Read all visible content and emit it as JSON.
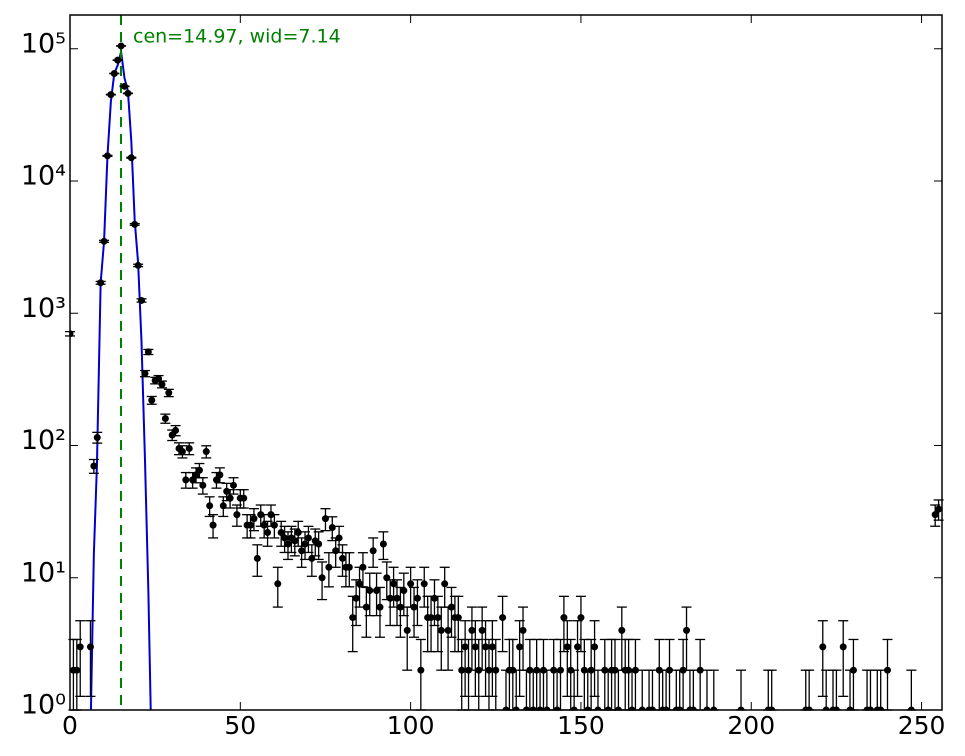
{
  "chart_data": {
    "type": "errorbar",
    "x": [
      0,
      1,
      2,
      3,
      6,
      7,
      8,
      9,
      10,
      11,
      12,
      13,
      14,
      15,
      16,
      17,
      18,
      19,
      20,
      21,
      22,
      23,
      24,
      25,
      26,
      27,
      28,
      29,
      30,
      31,
      32,
      33,
      34,
      35,
      36,
      37,
      38,
      39,
      40,
      41,
      42,
      43,
      44,
      45,
      46,
      47,
      48,
      49,
      50,
      51,
      52,
      53,
      54,
      55,
      56,
      57,
      58,
      59,
      60,
      61,
      62,
      63,
      64,
      65,
      66,
      67,
      68,
      69,
      70,
      71,
      72,
      73,
      74,
      75,
      76,
      77,
      78,
      79,
      80,
      81,
      82,
      83,
      84,
      85,
      86,
      87,
      88,
      89,
      90,
      91,
      92,
      93,
      94,
      95,
      96,
      97,
      98,
      99,
      100,
      101,
      102,
      103,
      104,
      105,
      106,
      107,
      108,
      109,
      110,
      111,
      112,
      113,
      114,
      115,
      116,
      117,
      118,
      119,
      120,
      121,
      122,
      123,
      124,
      125,
      127,
      128,
      129,
      130,
      131,
      132,
      133,
      134,
      135,
      136,
      137,
      138,
      139,
      140,
      142,
      143,
      144,
      145,
      146,
      147,
      148,
      149,
      150,
      151,
      152,
      153,
      154,
      155,
      157,
      158,
      159,
      160,
      161,
      162,
      163,
      164,
      165,
      166,
      168,
      170,
      171,
      173,
      174,
      175,
      176,
      178,
      179,
      180,
      181,
      182,
      183,
      185,
      187,
      189,
      197,
      205,
      206,
      216,
      217,
      221,
      222,
      224,
      225,
      227,
      229,
      230,
      234,
      235,
      237,
      238,
      240,
      247,
      254,
      255
    ],
    "values": [
      700,
      2,
      2,
      3,
      3,
      70,
      115,
      1700,
      3500,
      15500,
      45000,
      65000,
      82000,
      105000,
      52000,
      46000,
      15000,
      4700,
      2300,
      1250,
      350,
      510,
      220,
      310,
      320,
      290,
      160,
      250,
      120,
      130,
      95,
      90,
      55,
      95,
      55,
      60,
      65,
      50,
      90,
      35,
      25,
      55,
      60,
      35,
      45,
      40,
      50,
      30,
      40,
      40,
      25,
      25,
      28,
      14,
      30,
      25,
      22,
      30,
      25,
      9,
      22,
      20,
      18,
      20,
      19,
      22,
      16,
      18,
      20,
      14,
      19,
      18,
      10,
      28,
      12,
      24,
      16,
      20,
      14,
      12,
      12,
      5,
      7,
      9,
      12,
      6,
      8,
      16,
      8,
      6,
      18,
      10,
      7,
      9,
      7,
      6,
      8,
      4,
      9,
      6,
      7,
      2,
      9,
      5,
      5,
      7,
      5,
      4,
      9,
      4,
      6,
      5,
      5,
      2,
      3,
      2,
      4,
      3,
      2,
      4,
      3,
      2,
      3,
      2,
      5,
      1,
      2,
      2,
      1,
      3,
      4,
      1,
      2,
      1,
      2,
      1,
      2,
      1,
      2,
      1,
      2,
      5,
      3,
      2,
      1,
      3,
      5,
      2,
      1,
      2,
      3,
      1,
      2,
      1,
      2,
      2,
      1,
      4,
      2,
      2,
      1,
      2,
      1,
      1,
      1,
      2,
      1,
      1,
      2,
      1,
      1,
      2,
      4,
      1,
      1,
      2,
      1,
      1,
      1,
      1,
      1,
      1,
      1,
      3,
      1,
      1,
      1,
      3,
      1,
      2,
      1,
      1,
      1,
      1,
      2,
      1,
      30,
      33
    ],
    "color": "#000000",
    "fit": {
      "color": "#0000cc",
      "x": [
        6.15,
        7,
        7.9,
        9,
        10,
        11,
        12,
        13,
        14,
        15,
        16,
        17,
        18,
        19,
        20,
        21,
        22,
        23,
        23.7
      ],
      "values": [
        1,
        15,
        70,
        1700,
        3500,
        15500,
        40000,
        65000,
        75000,
        95000,
        60000,
        48000,
        20000,
        5000,
        2400,
        600,
        80,
        8,
        1
      ]
    },
    "vline": {
      "x": 14.97,
      "color": "#008000"
    },
    "annotation": "cen=14.97, wid=7.14",
    "xlim": [
      0,
      256
    ],
    "ylim": [
      1,
      180000
    ],
    "log_y": true,
    "xticks": [
      0,
      50,
      100,
      150,
      200,
      250
    ],
    "yticks": [
      {
        "value": 1,
        "label": "10⁰"
      },
      {
        "value": 10,
        "label": "10¹"
      },
      {
        "value": 100,
        "label": "10²"
      },
      {
        "value": 1000,
        "label": "10³"
      },
      {
        "value": 10000,
        "label": "10⁴"
      },
      {
        "value": 100000,
        "label": "10⁵"
      }
    ]
  }
}
